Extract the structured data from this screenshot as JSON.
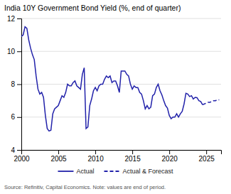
{
  "chart_data": {
    "type": "line",
    "title": "India 10Y Government Bond Yield (%, end of quarter)",
    "source": "Source: Refinitiv, Capital Economics. Note: values are end of period.",
    "xlim": [
      2000,
      2027.0
    ],
    "ylim": [
      4,
      12
    ],
    "yticks": [
      4,
      6,
      8,
      10,
      12
    ],
    "xticks": [
      2000,
      2005,
      2010,
      2015,
      2020,
      2025
    ],
    "grid": true,
    "legend": "bottom",
    "series": [
      {
        "name": "Actual",
        "color": "#2222AA",
        "line_style": "solid",
        "x": [
          2000.0,
          2000.25,
          2000.5,
          2000.75,
          2001.0,
          2001.25,
          2001.5,
          2001.75,
          2002.0,
          2002.25,
          2002.5,
          2002.75,
          2003.0,
          2003.25,
          2003.5,
          2003.75,
          2004.0,
          2004.25,
          2004.5,
          2004.75,
          2005.0,
          2005.25,
          2005.5,
          2005.75,
          2006.0,
          2006.25,
          2006.5,
          2006.75,
          2007.0,
          2007.25,
          2007.5,
          2007.75,
          2008.0,
          2008.25,
          2008.5,
          2008.75,
          2009.0,
          2009.25,
          2009.5,
          2009.75,
          2010.0,
          2010.25,
          2010.5,
          2010.75,
          2011.0,
          2011.25,
          2011.5,
          2011.75,
          2012.0,
          2012.25,
          2012.5,
          2012.75,
          2013.0,
          2013.25,
          2013.5,
          2013.75,
          2014.0,
          2014.25,
          2014.5,
          2014.75,
          2015.0,
          2015.25,
          2015.5,
          2015.75,
          2016.0,
          2016.25,
          2016.5,
          2016.75,
          2017.0,
          2017.25,
          2017.5,
          2017.75,
          2018.0,
          2018.25,
          2018.5,
          2018.75,
          2019.0,
          2019.25,
          2019.5,
          2019.75,
          2020.0,
          2020.25,
          2020.5,
          2020.75,
          2021.0,
          2021.25,
          2021.5,
          2021.75,
          2022.0,
          2022.25,
          2022.5,
          2022.75,
          2023.0,
          2023.25,
          2023.5,
          2023.75,
          2024.0,
          2024.25,
          2024.5
        ],
        "values": [
          10.9,
          11.0,
          11.5,
          11.4,
          10.7,
          10.2,
          9.8,
          9.5,
          8.5,
          7.7,
          7.4,
          7.5,
          7.2,
          6.1,
          5.3,
          5.15,
          5.2,
          6.2,
          6.5,
          6.6,
          6.7,
          7.0,
          7.3,
          7.2,
          7.5,
          8.0,
          7.9,
          7.9,
          8.1,
          8.2,
          7.9,
          7.8,
          7.7,
          8.6,
          9.0,
          5.3,
          5.4,
          6.7,
          7.1,
          7.6,
          7.8,
          7.6,
          7.9,
          8.0,
          8.0,
          8.3,
          8.5,
          8.4,
          8.5,
          8.1,
          8.2,
          8.2,
          7.9,
          7.5,
          8.8,
          8.8,
          8.8,
          8.6,
          8.5,
          8.0,
          7.7,
          7.9,
          7.8,
          7.8,
          7.5,
          7.4,
          7.0,
          6.5,
          6.7,
          6.5,
          6.6,
          7.3,
          7.4,
          7.8,
          8.0,
          7.6,
          7.35,
          7.0,
          6.7,
          6.55,
          6.1,
          5.9,
          6.0,
          6.0,
          6.2,
          6.0,
          6.2,
          6.35,
          6.8,
          7.45,
          7.4,
          7.25,
          7.3,
          7.1,
          7.2,
          7.18,
          7.0,
          6.95,
          6.75
        ]
      },
      {
        "name": "Actual & Forecast",
        "color": "#2222AA",
        "line_style": "dashed",
        "x": [
          2024.5,
          2024.75,
          2025.0,
          2025.25,
          2025.5,
          2025.75,
          2026.0,
          2026.25,
          2026.5,
          2026.75
        ],
        "values": [
          6.75,
          6.8,
          6.85,
          6.9,
          6.9,
          6.95,
          7.0,
          7.0,
          7.05,
          7.05
        ]
      }
    ]
  }
}
